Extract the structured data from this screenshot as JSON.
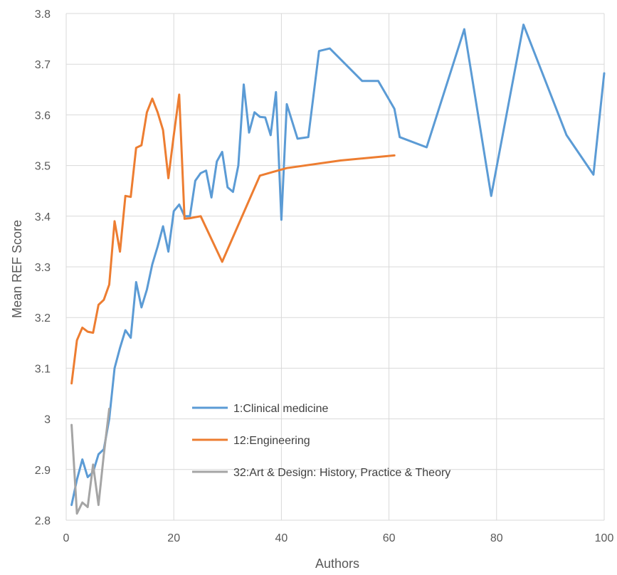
{
  "chart_data": {
    "type": "line",
    "title": "",
    "xlabel": "Authors",
    "ylabel": "Mean REF Score",
    "xlim": [
      0,
      100
    ],
    "ylim": [
      2.8,
      3.8
    ],
    "x_ticks": [
      "0",
      "20",
      "40",
      "60",
      "80",
      "100"
    ],
    "y_ticks": [
      "2.8",
      "2.9",
      "3",
      "3.1",
      "3.2",
      "3.3",
      "3.4",
      "3.5",
      "3.6",
      "3.7",
      "3.8"
    ],
    "grid": true,
    "legend_position": "lower-center",
    "series": [
      {
        "name": "1:Clinical medicine",
        "color": "#5b9bd5",
        "x": [
          1,
          2,
          3,
          4,
          5,
          6,
          7,
          8,
          9,
          10,
          11,
          12,
          13,
          14,
          15,
          16,
          17,
          18,
          19,
          20,
          21,
          22,
          23,
          24,
          25,
          26,
          27,
          28,
          29,
          30,
          31,
          32,
          33,
          34,
          35,
          36,
          37,
          38,
          39,
          40,
          41,
          43,
          45,
          47,
          49,
          55,
          58,
          61,
          62,
          67,
          74,
          79,
          85,
          93,
          98,
          100
        ],
        "y": [
          2.83,
          2.88,
          2.92,
          2.885,
          2.895,
          2.93,
          2.94,
          3.0,
          3.1,
          3.14,
          3.175,
          3.16,
          3.27,
          3.22,
          3.255,
          3.305,
          3.34,
          3.38,
          3.33,
          3.41,
          3.423,
          3.4,
          3.4,
          3.47,
          3.485,
          3.49,
          3.437,
          3.508,
          3.527,
          3.457,
          3.448,
          3.5,
          3.66,
          3.565,
          3.605,
          3.596,
          3.595,
          3.56,
          3.645,
          3.393,
          3.621,
          3.553,
          3.556,
          3.726,
          3.731,
          3.667,
          3.667,
          3.612,
          3.556,
          3.536,
          3.769,
          3.44,
          3.778,
          3.56,
          3.482,
          3.682
        ]
      },
      {
        "name": "12:Engineering",
        "color": "#ed7d31",
        "x": [
          1,
          2,
          3,
          4,
          5,
          6,
          7,
          8,
          9,
          10,
          11,
          12,
          13,
          14,
          15,
          16,
          17,
          18,
          19,
          20,
          21,
          22,
          23,
          24,
          25,
          29,
          36,
          41,
          51,
          61
        ],
        "y": [
          3.07,
          3.155,
          3.18,
          3.172,
          3.17,
          3.225,
          3.235,
          3.265,
          3.39,
          3.33,
          3.44,
          3.438,
          3.535,
          3.54,
          3.605,
          3.632,
          3.605,
          3.57,
          3.475,
          3.56,
          3.64,
          3.395,
          3.396,
          3.398,
          3.4,
          3.31,
          3.48,
          3.495,
          3.51,
          3.52
        ]
      },
      {
        "name": "32:Art & Design: History, Practice & Theory",
        "color": "#a5a5a5",
        "x": [
          1,
          2,
          3,
          4,
          5,
          6,
          7,
          8
        ],
        "y": [
          2.988,
          2.813,
          2.835,
          2.826,
          2.91,
          2.83,
          2.93,
          3.02
        ]
      }
    ]
  }
}
